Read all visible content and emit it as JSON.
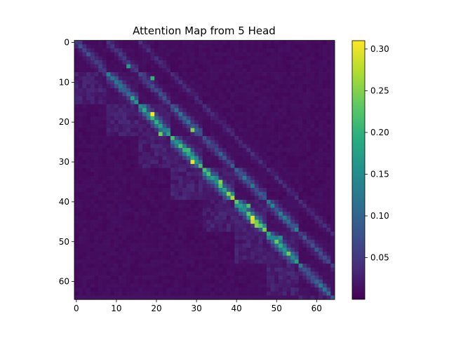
{
  "chart_data": {
    "type": "heatmap",
    "title": "Attention Map from 5 Head",
    "xlabel": "",
    "ylabel": "",
    "rows": 65,
    "cols": 65,
    "xlim": [
      -0.5,
      64.5
    ],
    "ylim": [
      64.5,
      -0.5
    ],
    "x_ticks": [
      0,
      10,
      20,
      30,
      40,
      50,
      60
    ],
    "y_ticks": [
      0,
      10,
      20,
      30,
      40,
      50,
      60
    ],
    "colormap": "viridis",
    "color_range": [
      0.0,
      0.31
    ],
    "colorbar_ticks": [
      0.05,
      0.1,
      0.15,
      0.2,
      0.25,
      0.3
    ],
    "colorbar_tick_labels": [
      "0.05",
      "0.10",
      "0.15",
      "0.20",
      "0.25",
      "0.30"
    ],
    "grid": false,
    "structure": {
      "block_size": 8,
      "primary_diagonal_values": [
        0.07,
        0.13,
        0.19,
        0.2,
        0.21,
        0.22,
        0.2,
        0.1
      ],
      "secondary_diagonal_values": [
        0.05,
        0.07,
        0.1,
        0.08,
        0.1,
        0.11,
        0.07,
        0.05
      ],
      "offblock_value": 0.025,
      "background_value": 0.01,
      "peaks": [
        {
          "row": 18,
          "col": 19,
          "value": 0.31
        },
        {
          "row": 30,
          "col": 29,
          "value": 0.3
        },
        {
          "row": 44,
          "col": 44,
          "value": 0.3
        },
        {
          "row": 45,
          "col": 44,
          "value": 0.28
        },
        {
          "row": 22,
          "col": 29,
          "value": 0.25
        },
        {
          "row": 23,
          "col": 21,
          "value": 0.24
        },
        {
          "row": 35,
          "col": 36,
          "value": 0.25
        },
        {
          "row": 46,
          "col": 45,
          "value": 0.25
        },
        {
          "row": 9,
          "col": 19,
          "value": 0.2
        },
        {
          "row": 14,
          "col": 14,
          "value": 0.18
        },
        {
          "row": 6,
          "col": 13,
          "value": 0.17
        },
        {
          "row": 27,
          "col": 28,
          "value": 0.21
        },
        {
          "row": 41,
          "col": 43,
          "value": 0.22
        },
        {
          "row": 49,
          "col": 51,
          "value": 0.16
        }
      ]
    }
  }
}
